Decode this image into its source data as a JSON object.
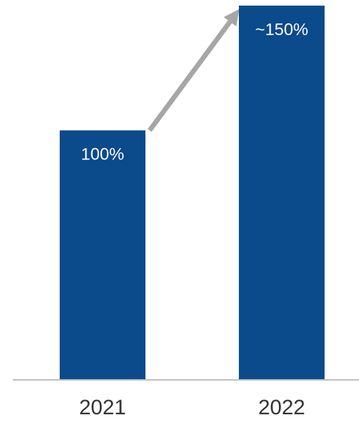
{
  "chart_data": {
    "type": "bar",
    "categories": [
      "2021",
      "2022"
    ],
    "values": [
      100,
      150
    ],
    "data_labels": [
      "100%",
      "~150%"
    ],
    "ylim": [
      0,
      150
    ],
    "grid": false,
    "legend": "none",
    "annotations": [
      {
        "type": "arrow",
        "from": "2021",
        "to": "2022",
        "color": "#a6a6a6"
      }
    ],
    "colors": {
      "bar": "#0b4a8b",
      "axis": "#bfbfbf",
      "arrow": "#a6a6a6",
      "data_label": "#ffffff",
      "tick_label": "#333333"
    }
  }
}
